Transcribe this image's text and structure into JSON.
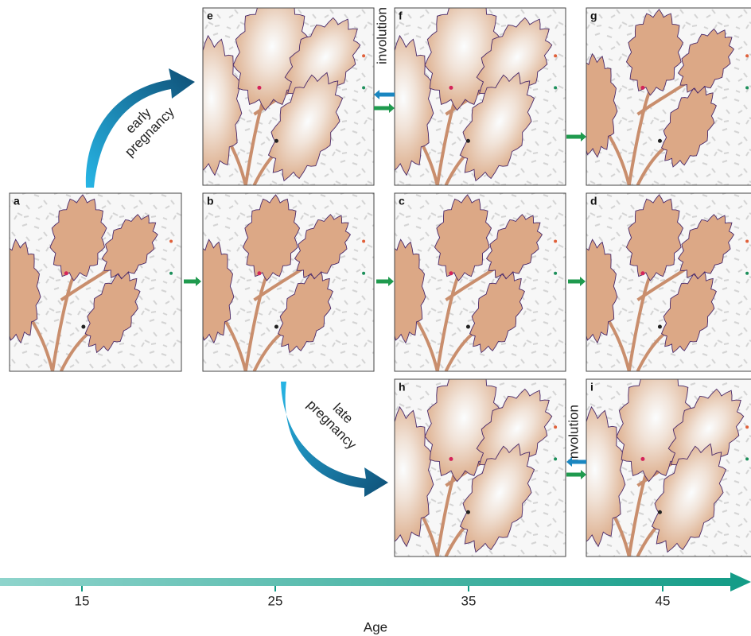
{
  "panels": [
    {
      "label": "a"
    },
    {
      "label": "b"
    },
    {
      "label": "c"
    },
    {
      "label": "d"
    },
    {
      "label": "e"
    },
    {
      "label": "f"
    },
    {
      "label": "g"
    },
    {
      "label": "h"
    },
    {
      "label": "i"
    }
  ],
  "arrows": {
    "early": "early pregnancy",
    "late": "late pregnancy",
    "involution_top": "involution",
    "involution_bottom": "involution"
  },
  "axis": {
    "label": "Age",
    "ticks": [
      "15",
      "25",
      "35",
      "45"
    ]
  }
}
